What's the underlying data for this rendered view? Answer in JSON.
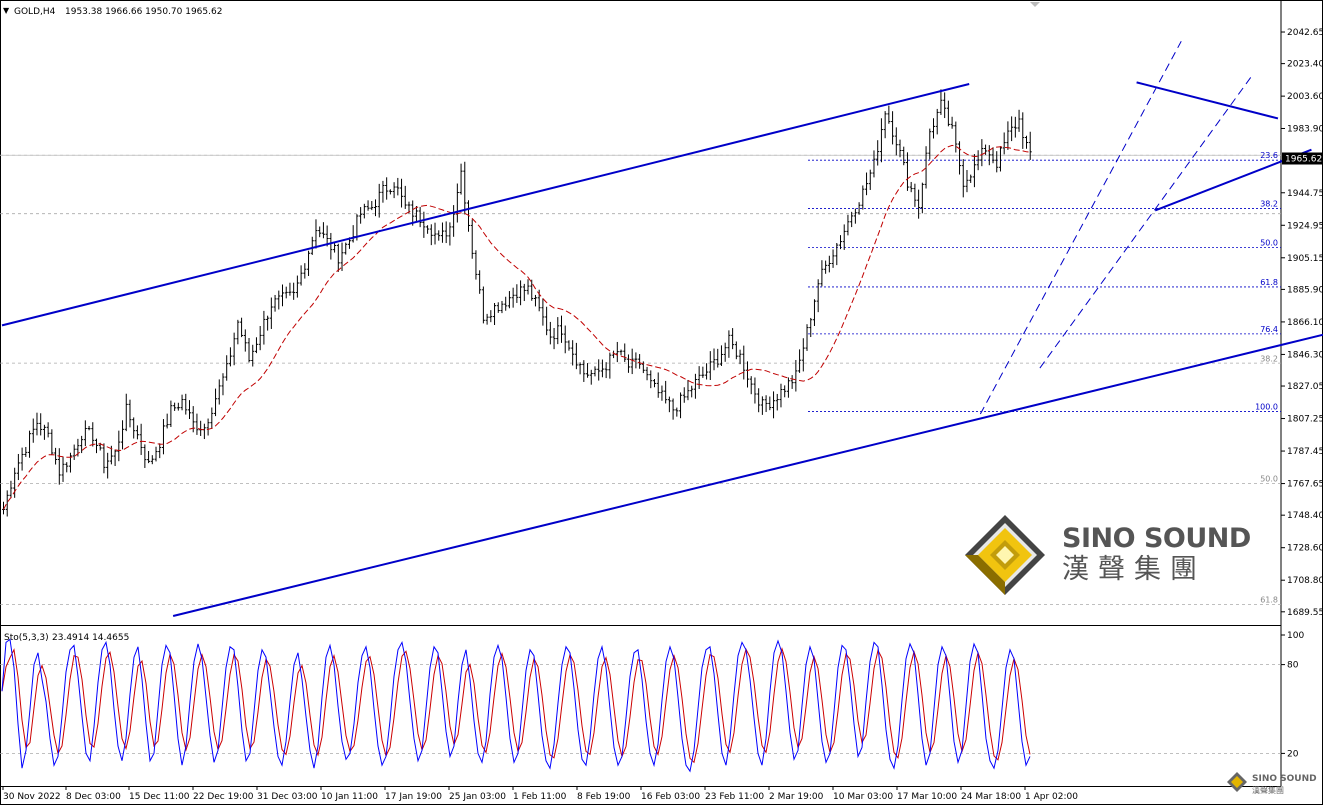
{
  "header": {
    "symbol": "GOLD,H4",
    "ohlc": "1953.38 1966.66 1950.70 1965.62"
  },
  "oscillator_header": {
    "name": "Sto(5,3,3)",
    "values": "23.4914 14.4655"
  },
  "watermark": {
    "brand_en": "SINO SOUND",
    "brand_zh": "漢聲集團",
    "small_en": "SINO SOUND",
    "small_zh": "漢聲集團"
  },
  "colors": {
    "trendline": "#0000c8",
    "candle": "#000000",
    "ma": "#c00000",
    "stoch_k": "#0000ff",
    "stoch_d": "#cc0000",
    "fib_blue": "#0000c8",
    "fib_gray": "#888888",
    "price_tag_bg": "#000000"
  },
  "chart_data": [
    {
      "type": "candlestick",
      "title": "GOLD,H4",
      "y_ticks": [
        "2042.65",
        "2023.40",
        "2003.60",
        "1983.90",
        "1965.62",
        "1944.75",
        "1924.95",
        "1905.15",
        "1885.90",
        "1866.10",
        "1846.30",
        "1827.05",
        "1807.25",
        "1787.45",
        "1767.65",
        "1748.40",
        "1728.60",
        "1708.80",
        "1689.55"
      ],
      "ylim": [
        1687,
        2056
      ],
      "x_ticks": [
        "30 Nov 2022",
        "8 Dec 03:00",
        "15 Dec 11:00",
        "22 Dec 19:00",
        "31 Dec 03:00",
        "10 Jan 11:00",
        "17 Jan 19:00",
        "25 Jan 03:00",
        "1 Feb 11:00",
        "8 Feb 19:00",
        "16 Feb 03:00",
        "23 Feb 11:00",
        "2 Mar 19:00",
        "10 Mar 03:00",
        "17 Mar 10:00",
        "24 Mar 18:00",
        "1 Apr 02:00"
      ],
      "current_price": "1965.62",
      "close_path": [
        [
          0,
          1752
        ],
        [
          3,
          1776
        ],
        [
          6,
          1790
        ],
        [
          9,
          1805
        ],
        [
          12,
          1797
        ],
        [
          15,
          1775
        ],
        [
          18,
          1784
        ],
        [
          21,
          1798
        ],
        [
          24,
          1797
        ],
        [
          27,
          1780
        ],
        [
          30,
          1786
        ],
        [
          33,
          1812
        ],
        [
          36,
          1797
        ],
        [
          39,
          1779
        ],
        [
          42,
          1793
        ],
        [
          45,
          1812
        ],
        [
          48,
          1818
        ],
        [
          51,
          1804
        ],
        [
          54,
          1802
        ],
        [
          57,
          1820
        ],
        [
          60,
          1837
        ],
        [
          63,
          1866
        ],
        [
          66,
          1843
        ],
        [
          69,
          1860
        ],
        [
          72,
          1877
        ],
        [
          75,
          1880
        ],
        [
          78,
          1882
        ],
        [
          81,
          1902
        ],
        [
          84,
          1924
        ],
        [
          87,
          1915
        ],
        [
          90,
          1906
        ],
        [
          93,
          1916
        ],
        [
          96,
          1932
        ],
        [
          99,
          1936
        ],
        [
          102,
          1946
        ],
        [
          105,
          1951
        ],
        [
          108,
          1936
        ],
        [
          111,
          1931
        ],
        [
          114,
          1926
        ],
        [
          117,
          1916
        ],
        [
          120,
          1924
        ],
        [
          123,
          1958
        ],
        [
          126,
          1910
        ],
        [
          129,
          1870
        ],
        [
          132,
          1875
        ],
        [
          135,
          1879
        ],
        [
          138,
          1885
        ],
        [
          141,
          1886
        ],
        [
          144,
          1873
        ],
        [
          147,
          1858
        ],
        [
          150,
          1862
        ],
        [
          153,
          1848
        ],
        [
          156,
          1835
        ],
        [
          159,
          1834
        ],
        [
          162,
          1840
        ],
        [
          165,
          1848
        ],
        [
          168,
          1839
        ],
        [
          171,
          1841
        ],
        [
          174,
          1828
        ],
        [
          177,
          1820
        ],
        [
          180,
          1813
        ],
        [
          183,
          1820
        ],
        [
          186,
          1829
        ],
        [
          189,
          1836
        ],
        [
          192,
          1844
        ],
        [
          195,
          1854
        ],
        [
          198,
          1845
        ],
        [
          201,
          1828
        ],
        [
          204,
          1815
        ],
        [
          207,
          1819
        ],
        [
          210,
          1826
        ],
        [
          213,
          1833
        ],
        [
          216,
          1860
        ],
        [
          219,
          1890
        ],
        [
          222,
          1905
        ],
        [
          225,
          1917
        ],
        [
          228,
          1932
        ],
        [
          231,
          1945
        ],
        [
          234,
          1962
        ],
        [
          237,
          1995
        ],
        [
          240,
          1977
        ],
        [
          243,
          1952
        ],
        [
          246,
          1937
        ],
        [
          249,
          1982
        ],
        [
          252,
          1998
        ],
        [
          255,
          1982
        ],
        [
          258,
          1952
        ],
        [
          261,
          1960
        ],
        [
          264,
          1972
        ],
        [
          267,
          1963
        ],
        [
          270,
          1980
        ],
        [
          273,
          1989
        ],
        [
          276,
          1966
        ]
      ],
      "series": [
        {
          "name": "MA",
          "values": "moving average of closes"
        }
      ],
      "fibonacci_levels": [
        {
          "label": "23.6",
          "price": 1964.6,
          "color": "blue"
        },
        {
          "label": "38.2",
          "price": 1935.2,
          "color": "blue"
        },
        {
          "label": "50.0",
          "price": 1911.5,
          "color": "blue"
        },
        {
          "label": "61.8",
          "price": 1887.4,
          "color": "blue"
        },
        {
          "label": "76.4",
          "price": 1858.8,
          "color": "blue"
        },
        {
          "label": "100.0",
          "price": 1811.5,
          "color": "blue"
        },
        {
          "label": "38.2",
          "price": 1840.9,
          "color": "gray"
        },
        {
          "label": "50.0",
          "price": 1767.6,
          "color": "gray"
        },
        {
          "label": "61.8",
          "price": 1694.0,
          "color": "gray"
        }
      ],
      "horizontal_lines": [
        1967.6,
        1932.0,
        1841.0,
        1767.6,
        1694.0
      ],
      "trendlines": [
        {
          "from": [
            0,
            1864
          ],
          "to": [
            260,
            2011
          ]
        },
        {
          "from": [
            46,
            1687
          ],
          "to": [
            369,
            1866
          ]
        },
        {
          "from": [
            305,
            2012
          ],
          "to": [
            343,
            1990
          ]
        },
        {
          "from": [
            310,
            1934
          ],
          "to": [
            352,
            1971
          ]
        }
      ],
      "dashed_channels": [
        {
          "from": [
            263,
            1810
          ],
          "to": [
            317,
            2037
          ]
        },
        {
          "from": [
            279,
            1838
          ],
          "to": [
            336,
            2016
          ]
        }
      ]
    },
    {
      "type": "line",
      "title": "Sto(5,3,3)",
      "ylim": [
        0,
        100
      ],
      "y_ticks": [
        "100",
        "80",
        "20"
      ],
      "levels": [
        80,
        20
      ],
      "series": [
        {
          "name": "%K",
          "values": [
            62,
            95,
            97,
            78,
            40,
            10,
            22,
            50,
            80,
            88,
            70,
            55,
            30,
            12,
            18,
            45,
            75,
            90,
            93,
            72,
            45,
            20,
            15,
            38,
            68,
            90,
            95,
            80,
            50,
            25,
            15,
            30,
            60,
            85,
            92,
            70,
            40,
            15,
            20,
            50,
            80,
            93,
            88,
            60,
            30,
            12,
            25,
            55,
            82,
            94,
            84,
            58,
            32,
            14,
            22,
            50,
            78,
            92,
            90,
            65,
            35,
            15,
            20,
            48,
            76,
            90,
            85,
            62,
            38,
            18,
            12,
            28,
            55,
            80,
            88,
            70,
            45,
            22,
            10,
            25,
            58,
            85,
            93,
            80,
            52,
            28,
            16,
            20,
            40,
            68,
            86,
            92,
            78,
            50,
            25,
            12,
            18,
            42,
            72,
            90,
            95,
            82,
            55,
            30,
            15,
            22,
            50,
            78,
            92,
            88,
            62,
            35,
            18,
            25,
            55,
            80,
            90,
            70,
            42,
            20,
            14,
            28,
            60,
            85,
            93,
            84,
            58,
            30,
            14,
            20,
            48,
            76,
            90,
            86,
            60,
            32,
            15,
            10,
            26,
            54,
            80,
            92,
            88,
            64,
            36,
            16,
            12,
            30,
            60,
            84,
            92,
            78,
            50,
            24,
            12,
            18,
            44,
            72,
            88,
            90,
            70,
            42,
            20,
            12,
            26,
            56,
            82,
            92,
            84,
            58,
            30,
            12,
            8,
            22,
            50,
            78,
            90,
            92,
            74,
            46,
            20,
            12,
            30,
            60,
            86,
            95,
            90,
            70,
            44,
            20,
            12,
            30,
            62,
            88,
            96,
            88,
            62,
            34,
            16,
            22,
            52,
            80,
            92,
            84,
            56,
            28,
            14,
            20,
            48,
            78,
            93,
            90,
            68,
            40,
            18,
            24,
            55,
            82,
            95,
            92,
            66,
            36,
            16,
            10,
            25,
            56,
            84,
            94,
            88,
            60,
            30,
            12,
            20,
            50,
            80,
            92,
            86,
            58,
            28,
            14,
            22,
            52,
            82,
            94,
            88,
            60,
            30,
            15,
            10,
            22,
            50,
            78,
            90,
            84,
            56,
            28,
            12,
            18
          ]
        },
        {
          "name": "%D",
          "values": "3-period average of %K"
        }
      ]
    }
  ]
}
